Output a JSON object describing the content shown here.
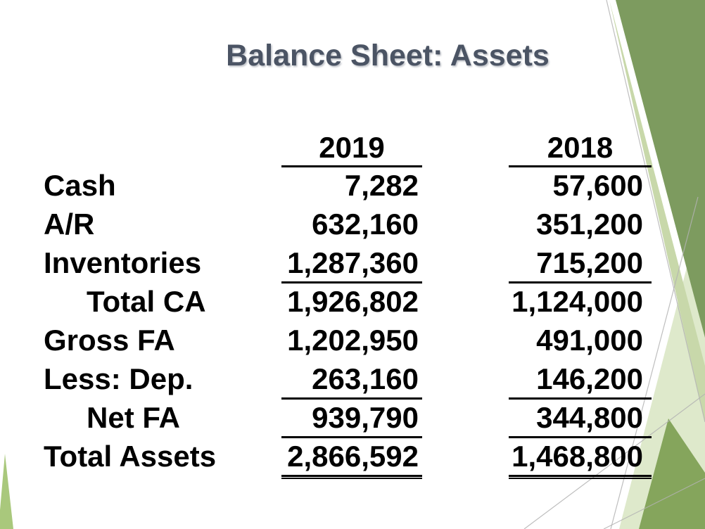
{
  "slide": {
    "title": "Balance Sheet: Assets",
    "columns": [
      "2019",
      "2018"
    ],
    "rows": [
      {
        "label": "Cash",
        "v2019": "7,282",
        "v2018": "57,600",
        "indent": false,
        "underline": "none"
      },
      {
        "label": "A/R",
        "v2019": "632,160",
        "v2018": "351,200",
        "indent": false,
        "underline": "none"
      },
      {
        "label": "Inventories",
        "v2019": "1,287,360",
        "v2018": "715,200",
        "indent": false,
        "underline": "single"
      },
      {
        "label": "Total CA",
        "v2019": "1,926,802",
        "v2018": "1,124,000",
        "indent": true,
        "underline": "none"
      },
      {
        "label": "Gross FA",
        "v2019": "1,202,950",
        "v2018": "491,000",
        "indent": false,
        "underline": "none"
      },
      {
        "label": "Less: Dep.",
        "v2019": "263,160",
        "v2018": "146,200",
        "indent": false,
        "underline": "single"
      },
      {
        "label": "Net FA",
        "v2019": "939,790",
        "v2018": "344,800",
        "indent": true,
        "underline": "single"
      },
      {
        "label": "Total Assets",
        "v2019": "2,866,592",
        "v2018": "1,468,800",
        "indent": false,
        "underline": "double"
      }
    ],
    "colors": {
      "title": "#4B5464",
      "text": "#000000",
      "green_dark": "#7D9B5F",
      "green_band": "#C8D8AA",
      "green_pale": "#DEE9CB",
      "green_medium": "#85A55C",
      "green_sliver": "#A9C87C",
      "hairline": "#B3B3B3"
    }
  },
  "chart_data": {
    "type": "table",
    "title": "Balance Sheet: Assets",
    "columns": [
      "",
      "2019",
      "2018"
    ],
    "rows": [
      [
        "Cash",
        7282,
        57600
      ],
      [
        "A/R",
        632160,
        351200
      ],
      [
        "Inventories",
        1287360,
        715200
      ],
      [
        "Total CA",
        1926802,
        1124000
      ],
      [
        "Gross FA",
        1202950,
        491000
      ],
      [
        "Less: Dep.",
        263160,
        146200
      ],
      [
        "Net FA",
        939790,
        344800
      ],
      [
        "Total Assets",
        2866592,
        1468800
      ]
    ]
  }
}
